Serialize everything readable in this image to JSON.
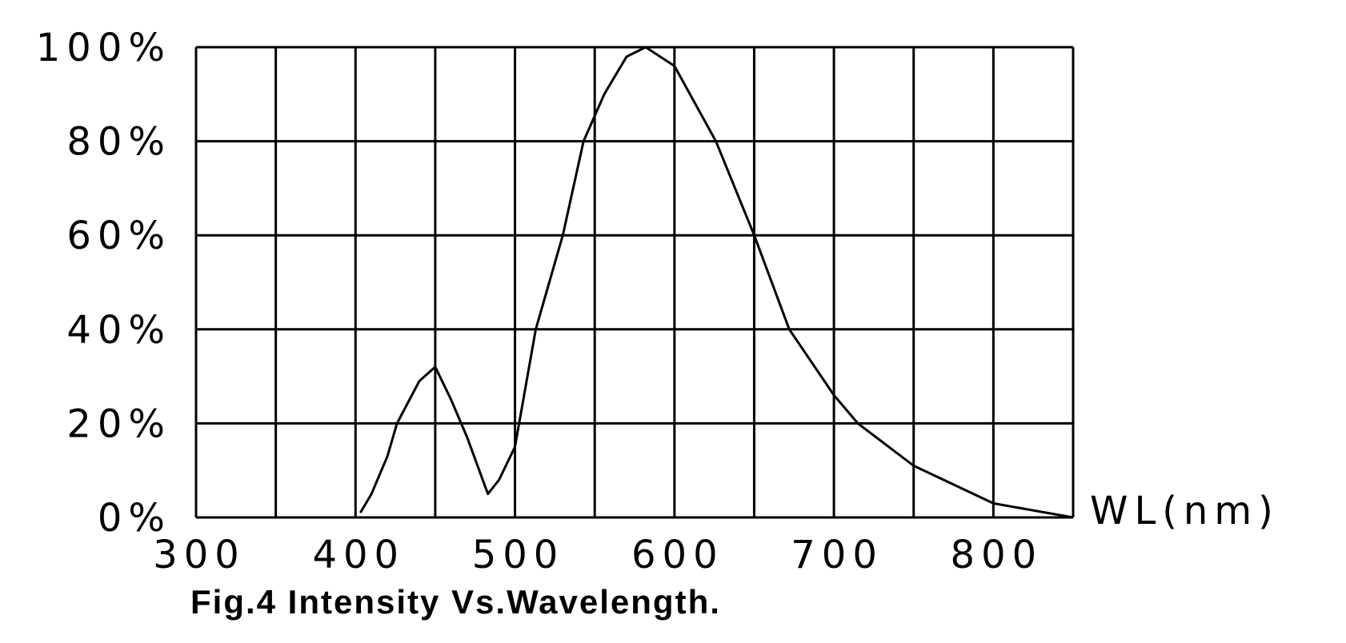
{
  "chart_data": {
    "type": "line",
    "title": "Fig.4 Intensity Vs.Wavelength.",
    "x_label": "WL(nm)",
    "x": [
      403,
      410,
      420,
      426,
      440,
      450,
      460,
      470,
      483,
      490,
      500,
      513,
      530,
      543,
      556,
      570,
      582,
      600,
      626,
      650,
      672,
      700,
      715,
      750,
      800,
      850
    ],
    "series": [
      {
        "name": "Intensity",
        "color": "#000000",
        "values": [
          1,
          5,
          13,
          20,
          29,
          32,
          25,
          17,
          5,
          8,
          15,
          40,
          60,
          80,
          90,
          98,
          100,
          96,
          80,
          60,
          40,
          26,
          20,
          11,
          3,
          0
        ]
      }
    ],
    "xlim": [
      300,
      850
    ],
    "xticks": [
      300,
      400,
      500,
      600,
      700,
      800
    ],
    "x_gridlines": [
      300,
      350,
      400,
      450,
      500,
      550,
      600,
      650,
      700,
      750,
      800,
      850
    ],
    "ylim": [
      0,
      100
    ],
    "yticks": [
      {
        "value": 0,
        "label": "0%"
      },
      {
        "value": 20,
        "label": "20%"
      },
      {
        "value": 40,
        "label": "40%"
      },
      {
        "value": 60,
        "label": "60%"
      },
      {
        "value": 80,
        "label": "80%"
      },
      {
        "value": 100,
        "label": "100%"
      }
    ],
    "grid": true
  }
}
